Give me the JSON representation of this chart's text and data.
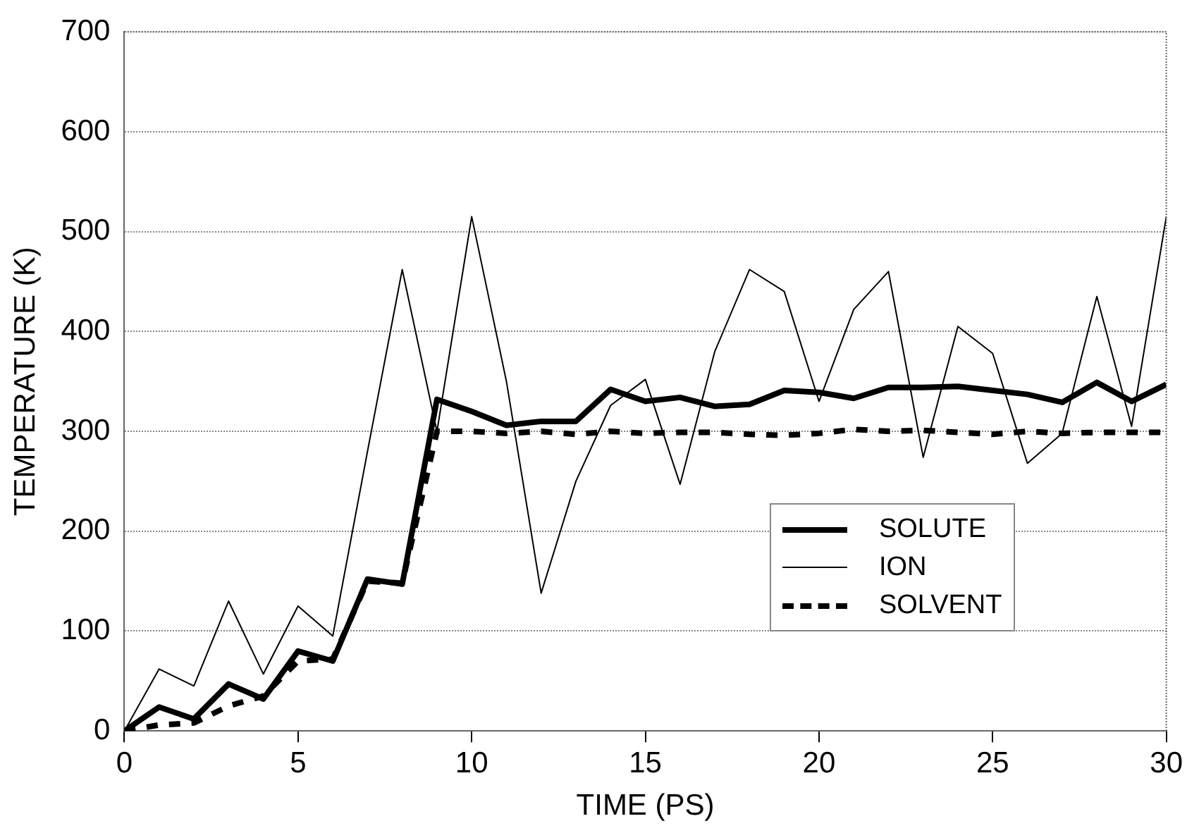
{
  "chart_data": {
    "type": "line",
    "xlabel": "TIME (PS)",
    "ylabel": "TEMPERATURE (K)",
    "x": [
      0,
      1,
      2,
      3,
      4,
      5,
      6,
      7,
      8,
      9,
      10,
      11,
      12,
      13,
      14,
      15,
      16,
      17,
      18,
      19,
      20,
      21,
      22,
      23,
      24,
      25,
      26,
      27,
      28,
      29,
      30
    ],
    "series": [
      {
        "name": "SOLUTE",
        "color": "#000000",
        "values": [
          0,
          24,
          12,
          47,
          32,
          80,
          70,
          152,
          147,
          332,
          320,
          306,
          310,
          310,
          342,
          330,
          334,
          325,
          327,
          341,
          339,
          333,
          344,
          344,
          345,
          341,
          337,
          329,
          349,
          330,
          347
        ]
      },
      {
        "name": "ION",
        "color": "#000000",
        "values": [
          0,
          62,
          45,
          130,
          57,
          125,
          95,
          280,
          462,
          300,
          515,
          350,
          138,
          250,
          326,
          352,
          247,
          380,
          462,
          440,
          330,
          422,
          460,
          274,
          405,
          378,
          268,
          298,
          435,
          305,
          515
        ]
      },
      {
        "name": "SOLVENT",
        "color": "#000000",
        "line_style": "dashed",
        "values": [
          0,
          6,
          8,
          25,
          35,
          70,
          72,
          150,
          148,
          300,
          300,
          298,
          300,
          297,
          300,
          298,
          299,
          299,
          297,
          296,
          298,
          302,
          300,
          301,
          299,
          297,
          300,
          298,
          299,
          299,
          299
        ]
      }
    ],
    "xlim": [
      0,
      30
    ],
    "xticks": [
      0,
      5,
      10,
      15,
      20,
      25,
      30
    ],
    "ylim": [
      0,
      700
    ],
    "yticks": [
      0,
      100,
      200,
      300,
      400,
      500,
      600,
      700
    ],
    "grid": "y",
    "legend": "bottom right",
    "marker": "none",
    "line_style": "solid"
  }
}
